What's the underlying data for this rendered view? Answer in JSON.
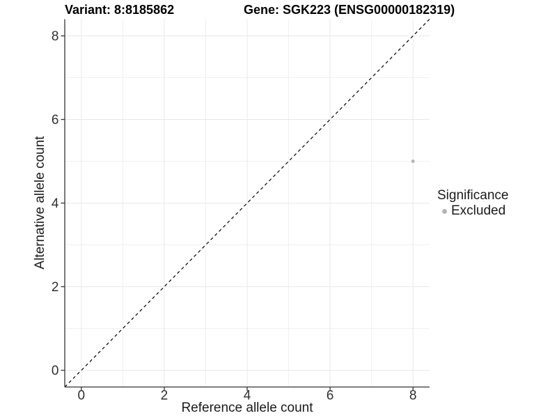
{
  "figure": {
    "title_left": "Variant: 8:8185862",
    "title_right": "Gene: SGK223 (ENSG00000182319)"
  },
  "chart_data": {
    "type": "scatter",
    "title": "Variant: 8:8185862    Gene: SGK223 (ENSG00000182319)",
    "xlabel": "Reference allele count",
    "ylabel": "Alternative allele count",
    "xlim": [
      -0.4,
      8.4
    ],
    "ylim": [
      -0.4,
      8.4
    ],
    "x_ticks": [
      0,
      2,
      4,
      6,
      8
    ],
    "y_ticks": [
      0,
      2,
      4,
      6,
      8
    ],
    "x_minor": [
      1,
      3,
      5,
      7
    ],
    "y_minor": [
      1,
      3,
      5,
      7
    ],
    "grid": true,
    "abline": {
      "slope": 1,
      "intercept": 0,
      "style": "dashed",
      "color": "#000000"
    },
    "series": [
      {
        "name": "Excluded",
        "color": "#b5b5b5",
        "point_radius": 2.5,
        "points": [
          {
            "x": 8,
            "y": 5
          }
        ]
      }
    ],
    "legend": {
      "title": "Significance",
      "position": "right",
      "items": [
        {
          "label": "Excluded",
          "color": "#b5b5b5"
        }
      ]
    }
  },
  "colors": {
    "background": "#ffffff",
    "grid_major": "#e8e8e8",
    "grid_minor": "#f0f0f0",
    "axis_line": "#333333",
    "tick_text": "#303030"
  }
}
